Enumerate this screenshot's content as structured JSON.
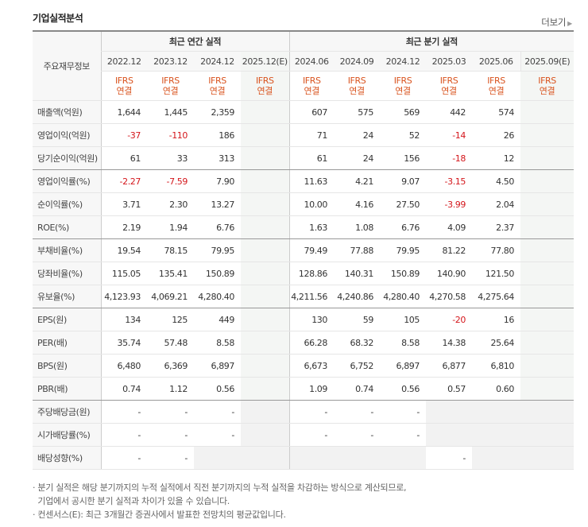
{
  "title": "기업실적분석",
  "more": "더보기",
  "header": {
    "row_header": "주요재무정보",
    "annual_group": "최근 연간 실적",
    "quarter_group": "최근 분기 실적",
    "annual_dates": [
      "2022.12",
      "2023.12",
      "2024.12",
      "2025.12(E)"
    ],
    "quarter_dates": [
      "2024.06",
      "2024.09",
      "2024.12",
      "2025.03",
      "2025.06",
      "2025.09(E)"
    ],
    "ifrs": "IFRS",
    "basis": "연결"
  },
  "rows": [
    {
      "label": "매출액(억원)",
      "annual": [
        "1,644",
        "1,445",
        "2,359",
        ""
      ],
      "quarter": [
        "607",
        "575",
        "569",
        "442",
        "574",
        ""
      ]
    },
    {
      "label": "영업이익(억원)",
      "annual": [
        "-37",
        "-110",
        "186",
        ""
      ],
      "quarter": [
        "71",
        "24",
        "52",
        "-14",
        "26",
        ""
      ]
    },
    {
      "label": "당기순이익(억원)",
      "annual": [
        "61",
        "33",
        "313",
        ""
      ],
      "quarter": [
        "61",
        "24",
        "156",
        "-18",
        "12",
        ""
      ]
    },
    {
      "label": "영업이익률(%)",
      "annual": [
        "-2.27",
        "-7.59",
        "7.90",
        ""
      ],
      "quarter": [
        "11.63",
        "4.21",
        "9.07",
        "-3.15",
        "4.50",
        ""
      ]
    },
    {
      "label": "순이익률(%)",
      "annual": [
        "3.71",
        "2.30",
        "13.27",
        ""
      ],
      "quarter": [
        "10.00",
        "4.16",
        "27.50",
        "-3.99",
        "2.04",
        ""
      ]
    },
    {
      "label": "ROE(%)",
      "annual": [
        "2.19",
        "1.94",
        "6.76",
        ""
      ],
      "quarter": [
        "1.63",
        "1.08",
        "6.76",
        "4.09",
        "2.37",
        ""
      ]
    },
    {
      "label": "부채비율(%)",
      "annual": [
        "19.54",
        "78.15",
        "79.95",
        ""
      ],
      "quarter": [
        "79.49",
        "77.88",
        "79.95",
        "81.22",
        "77.80",
        ""
      ]
    },
    {
      "label": "당좌비율(%)",
      "annual": [
        "115.05",
        "135.41",
        "150.89",
        ""
      ],
      "quarter": [
        "128.86",
        "140.31",
        "150.89",
        "140.90",
        "121.50",
        ""
      ]
    },
    {
      "label": "유보율(%)",
      "annual": [
        "4,123.93",
        "4,069.21",
        "4,280.40",
        ""
      ],
      "quarter": [
        "4,211.56",
        "4,240.86",
        "4,280.40",
        "4,270.58",
        "4,275.64",
        ""
      ]
    },
    {
      "label": "EPS(원)",
      "annual": [
        "134",
        "125",
        "449",
        ""
      ],
      "quarter": [
        "130",
        "59",
        "105",
        "-20",
        "16",
        ""
      ]
    },
    {
      "label": "PER(배)",
      "annual": [
        "35.74",
        "57.48",
        "8.58",
        ""
      ],
      "quarter": [
        "66.28",
        "68.32",
        "8.58",
        "14.38",
        "25.64",
        ""
      ]
    },
    {
      "label": "BPS(원)",
      "annual": [
        "6,480",
        "6,369",
        "6,897",
        ""
      ],
      "quarter": [
        "6,673",
        "6,752",
        "6,897",
        "6,877",
        "6,810",
        ""
      ]
    },
    {
      "label": "PBR(배)",
      "annual": [
        "0.74",
        "1.12",
        "0.56",
        ""
      ],
      "quarter": [
        "1.09",
        "0.74",
        "0.56",
        "0.57",
        "0.60",
        ""
      ]
    },
    {
      "label": "주당배당금(원)",
      "annual": [
        "-",
        "-",
        "-",
        ""
      ],
      "quarter": [
        "-",
        "-",
        "-",
        "",
        "",
        ""
      ]
    },
    {
      "label": "시가배당률(%)",
      "annual": [
        "-",
        "-",
        "-",
        ""
      ],
      "quarter": [
        "-",
        "-",
        "-",
        "",
        "",
        ""
      ]
    },
    {
      "label": "배당성향(%)",
      "annual": [
        "-",
        "-",
        "",
        ""
      ],
      "quarter": [
        "",
        "",
        "",
        "-",
        "",
        ""
      ]
    }
  ],
  "notes": [
    "· 분기 실적은 해당 분기까지의 누적 실적에서 직전 분기까지의 누적 실적을 차감하는 방식으로 계산되므로,",
    "  기업에서 공시한 분기 실적과 차이가 있을 수 있습니다.",
    "· 컨센서스(E): 최근 3개월간 증권사에서 발표한 전망치의 평균값입니다."
  ],
  "colors": {
    "negative": "#d4161b",
    "ifrs": "#d9531e"
  }
}
